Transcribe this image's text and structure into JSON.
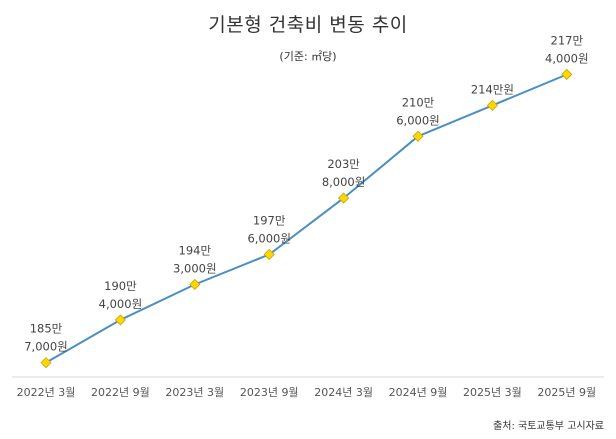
{
  "header": {
    "title": "기본형 건축비 변동 추이",
    "subtitle": "(기준: ㎡당)"
  },
  "footer": {
    "source": "출처: 국토교통부  고시자료"
  },
  "chart_data": {
    "type": "line",
    "title": "기본형 건축비 변동 추이",
    "subtitle": "(기준: ㎡당)",
    "xlabel": "",
    "ylabel": "",
    "categories": [
      "2022년 3월",
      "2022년 9월",
      "2023년 3월",
      "2023년 9월",
      "2024년 3월",
      "2024년 9월",
      "2025년 3월",
      "2025년 9월"
    ],
    "series": [
      {
        "values": [
          1857000,
          1904000,
          1943000,
          1976000,
          2038000,
          2106000,
          2140000,
          2174000
        ],
        "labels": [
          [
            "185만",
            "7,000원"
          ],
          [
            "190만",
            "4,000원"
          ],
          [
            "194만",
            "3,000원"
          ],
          [
            "197만",
            "6,000원"
          ],
          [
            "203만",
            "8,000원"
          ],
          [
            "210만",
            "6,000원"
          ],
          [
            "214만원"
          ],
          [
            "217만",
            "4,000원"
          ]
        ]
      }
    ],
    "ylim": [
      1850000,
      2180000
    ],
    "grid": false,
    "line_color": "#4a8fc4",
    "marker_color": "#ffd700",
    "marker_border_color": "#c9a400",
    "axis_color": "#d8d8d8"
  }
}
